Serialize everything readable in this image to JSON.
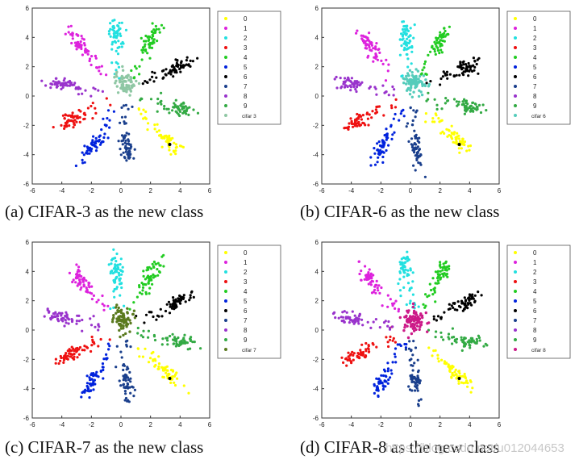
{
  "chart_data": [
    {
      "type": "scatter",
      "caption": "(a) CIFAR-3 as the new class",
      "xlim": [
        -6,
        6
      ],
      "ylim": [
        -6,
        6
      ],
      "xticks": [
        "-6",
        "-4",
        "-2",
        "0",
        "2",
        "4",
        "6"
      ],
      "yticks": [
        "6",
        "4",
        "2",
        "0",
        "-2",
        "-4",
        "-6"
      ],
      "legend_position": "right",
      "new_class": {
        "name": "cifar 3",
        "color": "#8fc7a4",
        "center": [
          0.3,
          0.9
        ]
      },
      "series": [
        {
          "name": "0",
          "color": "#ffff00",
          "center": [
            3.2,
            -3.0
          ]
        },
        {
          "name": "1",
          "color": "#dd22dd",
          "center": [
            -2.8,
            3.5
          ]
        },
        {
          "name": "2",
          "color": "#22e0e0",
          "center": [
            -0.3,
            4.2
          ]
        },
        {
          "name": "3",
          "color": "#ee1111",
          "center": [
            -3.5,
            -1.7
          ]
        },
        {
          "name": "4",
          "color": "#22cc22",
          "center": [
            2.1,
            3.9
          ]
        },
        {
          "name": "5",
          "color": "#0022dd",
          "center": [
            -1.9,
            -3.5
          ]
        },
        {
          "name": "6",
          "color": "#000000",
          "center": [
            3.8,
            1.9
          ]
        },
        {
          "name": "7",
          "color": "#1a3f8c",
          "center": [
            0.4,
            -3.6
          ]
        },
        {
          "name": "8",
          "color": "#9933cc",
          "center": [
            -4.0,
            0.8
          ]
        },
        {
          "name": "9",
          "color": "#33aa44",
          "center": [
            4.0,
            -0.8
          ]
        }
      ]
    },
    {
      "type": "scatter",
      "caption": "(b) CIFAR-6 as the new class",
      "xlim": [
        -6,
        6
      ],
      "ylim": [
        -6,
        6
      ],
      "xticks": [
        "-6",
        "-4",
        "-2",
        "0",
        "2",
        "4",
        "6"
      ],
      "yticks": [
        "6",
        "4",
        "2",
        "0",
        "-2",
        "-4",
        "-6"
      ],
      "legend_position": "right",
      "new_class": {
        "name": "cifar 6",
        "color": "#55ccbb",
        "center": [
          0.3,
          0.9
        ]
      },
      "series": [
        {
          "name": "0",
          "color": "#ffff00",
          "center": [
            3.2,
            -3.0
          ]
        },
        {
          "name": "1",
          "color": "#dd22dd",
          "center": [
            -2.8,
            3.5
          ]
        },
        {
          "name": "2",
          "color": "#22e0e0",
          "center": [
            -0.3,
            4.2
          ]
        },
        {
          "name": "3",
          "color": "#ee1111",
          "center": [
            -3.5,
            -1.7
          ]
        },
        {
          "name": "4",
          "color": "#22cc22",
          "center": [
            2.1,
            3.9
          ]
        },
        {
          "name": "5",
          "color": "#0022dd",
          "center": [
            -1.9,
            -3.5
          ]
        },
        {
          "name": "6",
          "color": "#000000",
          "center": [
            3.8,
            1.9
          ]
        },
        {
          "name": "7",
          "color": "#1a3f8c",
          "center": [
            0.4,
            -3.6
          ]
        },
        {
          "name": "8",
          "color": "#9933cc",
          "center": [
            -4.0,
            0.8
          ]
        },
        {
          "name": "9",
          "color": "#33aa44",
          "center": [
            4.0,
            -0.8
          ]
        }
      ]
    },
    {
      "type": "scatter",
      "caption": "(c) CIFAR-7 as the new class",
      "xlim": [
        -6,
        6
      ],
      "ylim": [
        -6,
        6
      ],
      "xticks": [
        "-6",
        "-4",
        "-2",
        "0",
        "2",
        "4",
        "6"
      ],
      "yticks": [
        "6",
        "4",
        "2",
        "0",
        "-2",
        "-4",
        "-6"
      ],
      "legend_position": "right",
      "new_class": {
        "name": "cifar 7",
        "color": "#5a7a1f",
        "center": [
          0.1,
          0.7
        ]
      },
      "series": [
        {
          "name": "0",
          "color": "#ffff00",
          "center": [
            3.2,
            -3.0
          ]
        },
        {
          "name": "1",
          "color": "#dd22dd",
          "center": [
            -2.8,
            3.5
          ]
        },
        {
          "name": "2",
          "color": "#22e0e0",
          "center": [
            -0.3,
            4.2
          ]
        },
        {
          "name": "3",
          "color": "#ee1111",
          "center": [
            -3.5,
            -1.7
          ]
        },
        {
          "name": "4",
          "color": "#22cc22",
          "center": [
            2.1,
            3.9
          ]
        },
        {
          "name": "5",
          "color": "#0022dd",
          "center": [
            -1.9,
            -3.5
          ]
        },
        {
          "name": "6",
          "color": "#000000",
          "center": [
            3.8,
            1.9
          ]
        },
        {
          "name": "7",
          "color": "#1a3f8c",
          "center": [
            0.4,
            -3.6
          ]
        },
        {
          "name": "8",
          "color": "#9933cc",
          "center": [
            -4.0,
            0.8
          ]
        },
        {
          "name": "9",
          "color": "#33aa44",
          "center": [
            4.0,
            -0.8
          ]
        }
      ]
    },
    {
      "type": "scatter",
      "caption": "(d) CIFAR-8 as the new class",
      "xlim": [
        -6,
        6
      ],
      "ylim": [
        -6,
        6
      ],
      "xticks": [
        "-6",
        "-4",
        "-2",
        "0",
        "2",
        "4",
        "6"
      ],
      "yticks": [
        "6",
        "4",
        "2",
        "0",
        "-2",
        "-4",
        "-6"
      ],
      "legend_position": "right",
      "new_class": {
        "name": "cifar 8",
        "color": "#cc1a88",
        "center": [
          0.2,
          0.6
        ]
      },
      "series": [
        {
          "name": "0",
          "color": "#ffff00",
          "center": [
            3.2,
            -3.0
          ]
        },
        {
          "name": "1",
          "color": "#dd22dd",
          "center": [
            -2.8,
            3.5
          ]
        },
        {
          "name": "2",
          "color": "#22e0e0",
          "center": [
            -0.3,
            4.2
          ]
        },
        {
          "name": "3",
          "color": "#ee1111",
          "center": [
            -3.5,
            -1.7
          ]
        },
        {
          "name": "4",
          "color": "#22cc22",
          "center": [
            2.1,
            3.9
          ]
        },
        {
          "name": "5",
          "color": "#0022dd",
          "center": [
            -1.9,
            -3.5
          ]
        },
        {
          "name": "6",
          "color": "#000000",
          "center": [
            3.8,
            1.9
          ]
        },
        {
          "name": "7",
          "color": "#1a3f8c",
          "center": [
            0.4,
            -3.6
          ]
        },
        {
          "name": "8",
          "color": "#9933cc",
          "center": [
            -4.0,
            0.8
          ]
        },
        {
          "name": "9",
          "color": "#33aa44",
          "center": [
            4.0,
            -0.8
          ]
        }
      ]
    }
  ],
  "watermark": "https://blog.csdn.net/u012044653"
}
